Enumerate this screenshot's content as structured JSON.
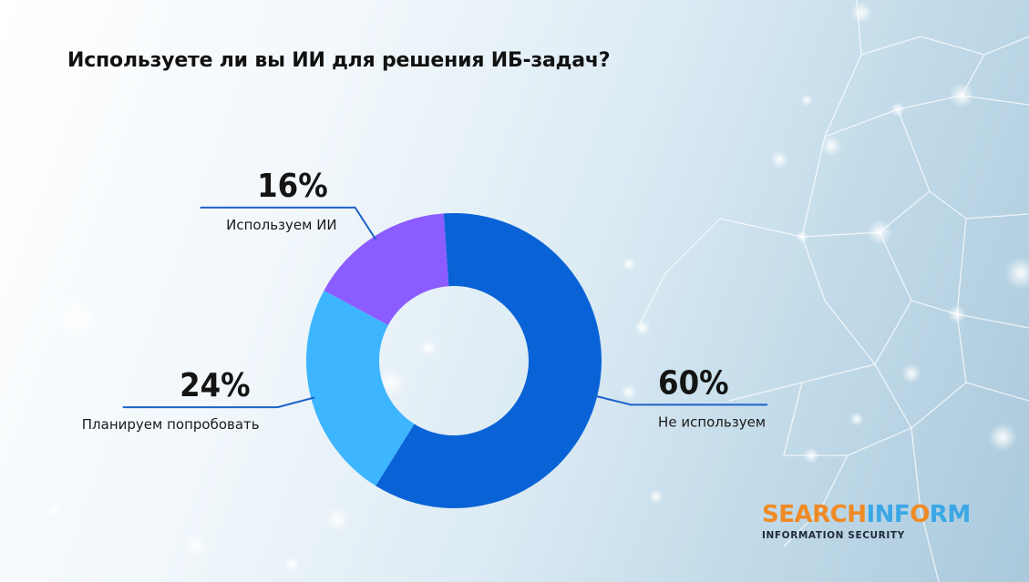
{
  "title": "Используете ли вы ИИ для решения ИБ-задач?",
  "chart_data": {
    "type": "pie",
    "title": "Используете ли вы ИИ для решения ИБ-задач?",
    "slices": [
      {
        "label": "Не используем",
        "value": 60,
        "value_label": "60%",
        "color": "#0a63d6",
        "label_side": "right"
      },
      {
        "label": "Планируем попробовать",
        "value": 24,
        "value_label": "24%",
        "color": "#3db5ff",
        "label_side": "left"
      },
      {
        "label": "Используем ИИ",
        "value": 16,
        "value_label": "16%",
        "color": "#8b5cff",
        "label_side": "left"
      }
    ],
    "donut": true,
    "legend": "none",
    "start_angle_deg": -4
  },
  "brand": {
    "logo_part1": "SEARCH",
    "logo_part2": "INF",
    "logo_part3": "O",
    "logo_part4": "RM",
    "tagline": "INFORMATION SECURITY",
    "color_primary": "#f08a24",
    "color_secondary": "#3aa7e6"
  },
  "colors": {
    "leader_line": "#1d62c9"
  }
}
